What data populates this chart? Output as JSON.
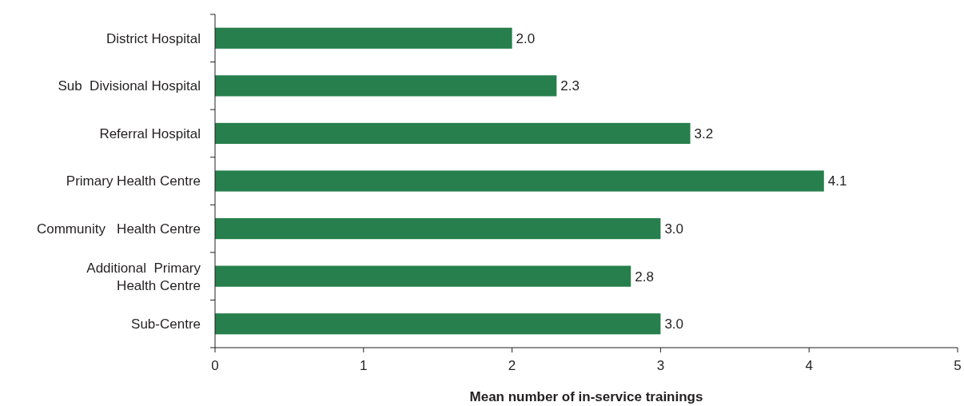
{
  "chart_data": {
    "type": "bar",
    "orientation": "horizontal",
    "xlabel": "Mean number of in-service trainings",
    "categories": [
      "District Hospital",
      "Sub  Divisional Hospital",
      "Referral Hospital",
      "Primary Health Centre",
      "Community   Health Centre",
      "Additional  Primary Health Centre",
      "Sub-Centre"
    ],
    "values": [
      2.0,
      2.3,
      3.2,
      4.1,
      3.0,
      2.8,
      3.0
    ],
    "value_labels": [
      "2.0",
      "2.3",
      "3.2",
      "4.1",
      "3.0",
      "2.8",
      "3.0"
    ],
    "color": "#267f4c",
    "xlim": [
      0,
      5
    ],
    "xticks": [
      0,
      1,
      2,
      3,
      4,
      5
    ],
    "grid": false
  }
}
